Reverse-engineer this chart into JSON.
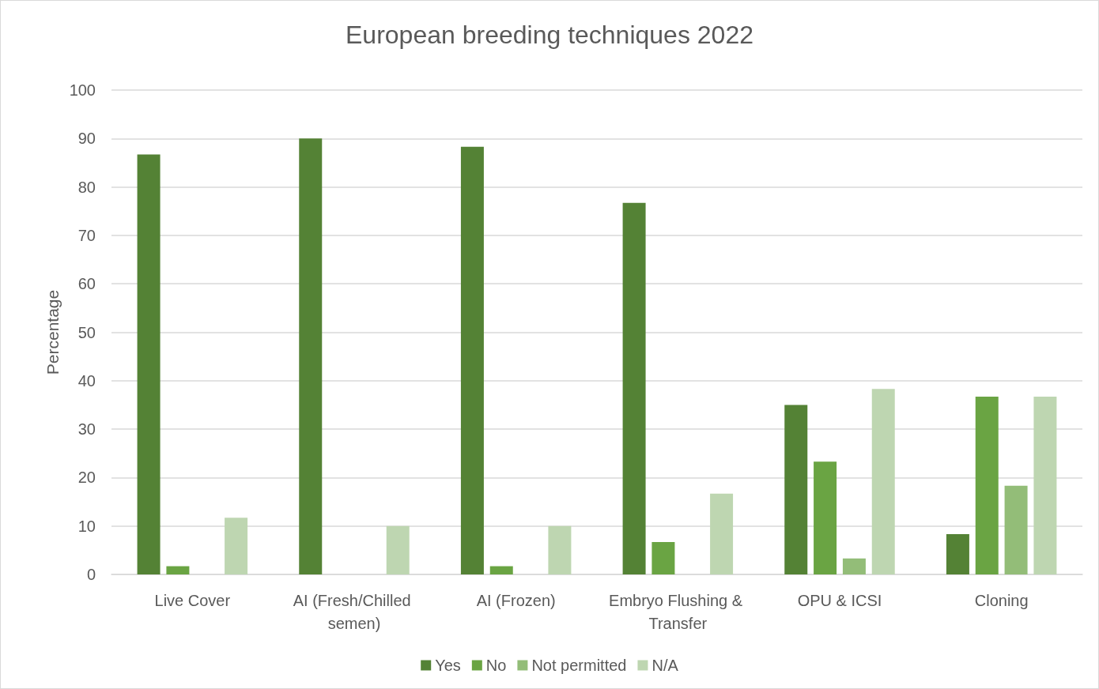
{
  "chart_data": {
    "type": "bar",
    "title": "European breeding techniques 2022",
    "ylabel": "Percentage",
    "categories": [
      "Live Cover",
      "AI (Fresh/Chilled semen)",
      "AI (Frozen)",
      "Embryo Flushing & Transfer",
      "OPU & ICSI",
      "Cloning"
    ],
    "series": [
      {
        "name": "Yes",
        "color": "#548235",
        "values": [
          86.7,
          90,
          88.3,
          76.7,
          35,
          8.3
        ]
      },
      {
        "name": "No",
        "color": "#6aa443",
        "values": [
          1.7,
          0,
          1.7,
          6.7,
          23.3,
          36.7
        ]
      },
      {
        "name": "Not permitted",
        "color": "#93bd78",
        "values": [
          0,
          0,
          0,
          0,
          3.3,
          18.3
        ]
      },
      {
        "name": "N/A",
        "color": "#bed6b1",
        "values": [
          11.7,
          10,
          10,
          16.7,
          38.3,
          36.7
        ]
      }
    ],
    "ylim": [
      0,
      100
    ],
    "yticks": [
      0,
      10,
      20,
      30,
      40,
      50,
      60,
      70,
      80,
      90,
      100
    ],
    "grid": "y",
    "legend": "bottom"
  }
}
